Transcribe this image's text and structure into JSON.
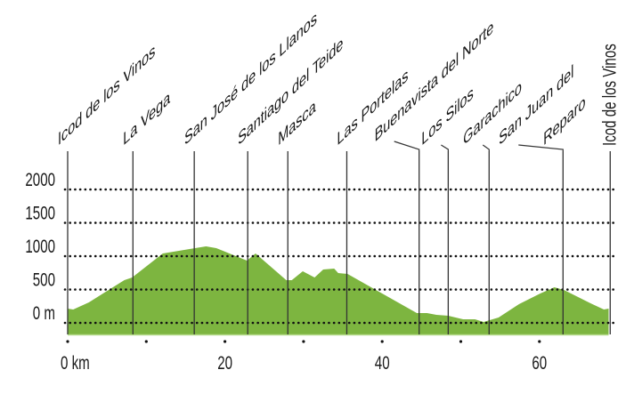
{
  "chart_data": {
    "type": "area",
    "title": "",
    "xlabel": "",
    "ylabel": "",
    "x_unit_label": "km",
    "y_unit_label": "m",
    "xlim": [
      0,
      69
    ],
    "ylim": [
      -170,
      2000
    ],
    "grid": "horizontal dotted",
    "fill_color": "#7db540",
    "y_ticks": [
      {
        "value": 0,
        "label": "0 m"
      },
      {
        "value": 500,
        "label": "500"
      },
      {
        "value": 1000,
        "label": "1000"
      },
      {
        "value": 1500,
        "label": "1500"
      },
      {
        "value": 2000,
        "label": "2000"
      }
    ],
    "x_ticks": [
      {
        "value": 0,
        "label": "0 km"
      },
      {
        "value": 10,
        "label": ""
      },
      {
        "value": 20,
        "label": "20"
      },
      {
        "value": 30,
        "label": ""
      },
      {
        "value": 40,
        "label": "40"
      },
      {
        "value": 50,
        "label": ""
      },
      {
        "value": 60,
        "label": "60"
      }
    ],
    "profile": {
      "distance_km": [
        0,
        0.7,
        2.7,
        7.2,
        8.2,
        12.1,
        15.5,
        17.6,
        18.9,
        22.8,
        23.9,
        27.8,
        28.5,
        29.9,
        31.4,
        32.5,
        33.9,
        34.4,
        35.6,
        38.6,
        44.4,
        45.7,
        46.9,
        48.4,
        50.3,
        51.8,
        52.9,
        54.8,
        57.4,
        60.1,
        61.9,
        63.1,
        66.5,
        68.2,
        68.8
      ],
      "elevation_m": [
        213,
        200,
        307,
        640,
        680,
        1040,
        1107,
        1147,
        1120,
        933,
        1040,
        640,
        640,
        773,
        680,
        800,
        813,
        747,
        733,
        533,
        147,
        147,
        120,
        107,
        53,
        53,
        13,
        80,
        280,
        440,
        533,
        493,
        293,
        200,
        213
      ]
    },
    "waypoints": [
      {
        "name": "Icod de los Vinos",
        "km": 0
      },
      {
        "name": "La Vega",
        "km": 8.3
      },
      {
        "name": "San José de los Llanos",
        "km": 16.1
      },
      {
        "name": "Santiago del Teide",
        "km": 22.9
      },
      {
        "name": "Masca",
        "km": 28.0
      },
      {
        "name": "Las Portelas",
        "km": 35.5
      },
      {
        "name": "Buenavista del Norte",
        "km": 44.7
      },
      {
        "name": "Los Silos",
        "km": 48.4
      },
      {
        "name": "Garachico",
        "km": 53.6
      },
      {
        "name": "San Juan del",
        "name2": "Reparo",
        "km": 63.0
      },
      {
        "name": "Icod de los Vinos",
        "km": 69
      }
    ]
  }
}
